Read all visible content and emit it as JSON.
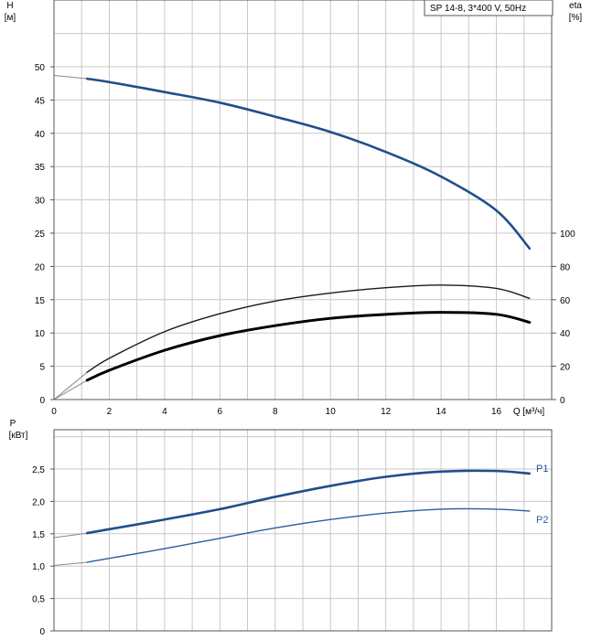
{
  "chart_data": [
    {
      "id": "top",
      "type": "line",
      "legend_box": "SP 14-8, 3*400 V, 50Hz",
      "xlabel": "Q [м³/ч]",
      "xlim": [
        0,
        18
      ],
      "xticks": [
        0,
        2,
        4,
        6,
        8,
        10,
        12,
        14,
        16
      ],
      "left_axis": {
        "label_top": "H",
        "label_unit": "[м]",
        "ylim": [
          0,
          55
        ],
        "ticks": [
          0,
          5,
          10,
          15,
          20,
          25,
          30,
          35,
          40,
          45,
          50
        ]
      },
      "right_axis": {
        "label_top": "eta",
        "label_unit": "[%]",
        "ylim": [
          0,
          100
        ],
        "ticks": [
          0,
          20,
          40,
          60,
          80,
          100
        ]
      },
      "grid": true,
      "series": [
        {
          "axis": "left",
          "color": "#1f4f8a",
          "x": [
            0,
            1.2,
            2,
            4,
            6,
            8,
            10,
            12,
            14,
            16,
            17.2
          ],
          "y": [
            48.7,
            48.2,
            47.7,
            46.2,
            44.6,
            42.5,
            40.2,
            37.2,
            33.5,
            28.4,
            22.7
          ]
        },
        {
          "axis": "left",
          "color": "#1a1a1a",
          "x": [
            0,
            1.2,
            2,
            4,
            6,
            8,
            10,
            12,
            14,
            16,
            17.2
          ],
          "y": [
            0,
            4.1,
            6.2,
            10.2,
            12.9,
            14.8,
            16.0,
            16.8,
            17.2,
            16.7,
            15.2
          ]
        },
        {
          "axis": "left",
          "color": "#000000",
          "x": [
            0,
            1.2,
            2,
            4,
            6,
            8,
            10,
            12,
            14,
            16,
            17.2
          ],
          "y": [
            0,
            2.9,
            4.4,
            7.4,
            9.6,
            11.1,
            12.2,
            12.8,
            13.1,
            12.8,
            11.6
          ]
        }
      ]
    },
    {
      "id": "bottom",
      "type": "line",
      "xlim": [
        0,
        18
      ],
      "y_axis": {
        "label_top": "P",
        "label_unit": "[кВт]",
        "ylim": [
          0,
          3.0
        ],
        "ticks": [
          0,
          0.5,
          1.0,
          1.5,
          2.0,
          2.5
        ],
        "tick_labels": [
          "0",
          "0,5",
          "1,0",
          "1,5",
          "2,0",
          "2,5"
        ]
      },
      "grid": true,
      "series": [
        {
          "name": "P1",
          "color": "#1f4f8a",
          "x": [
            0,
            1.2,
            2,
            4,
            6,
            8,
            10,
            12,
            14,
            16,
            17.2
          ],
          "y": [
            1.44,
            1.51,
            1.57,
            1.72,
            1.88,
            2.07,
            2.24,
            2.38,
            2.46,
            2.47,
            2.43
          ]
        },
        {
          "name": "P2",
          "color": "#2a5f9e",
          "x": [
            0,
            1.2,
            2,
            4,
            6,
            8,
            10,
            12,
            14,
            16,
            17.2
          ],
          "y": [
            1.01,
            1.06,
            1.12,
            1.27,
            1.43,
            1.59,
            1.72,
            1.82,
            1.88,
            1.88,
            1.85
          ]
        }
      ]
    }
  ]
}
